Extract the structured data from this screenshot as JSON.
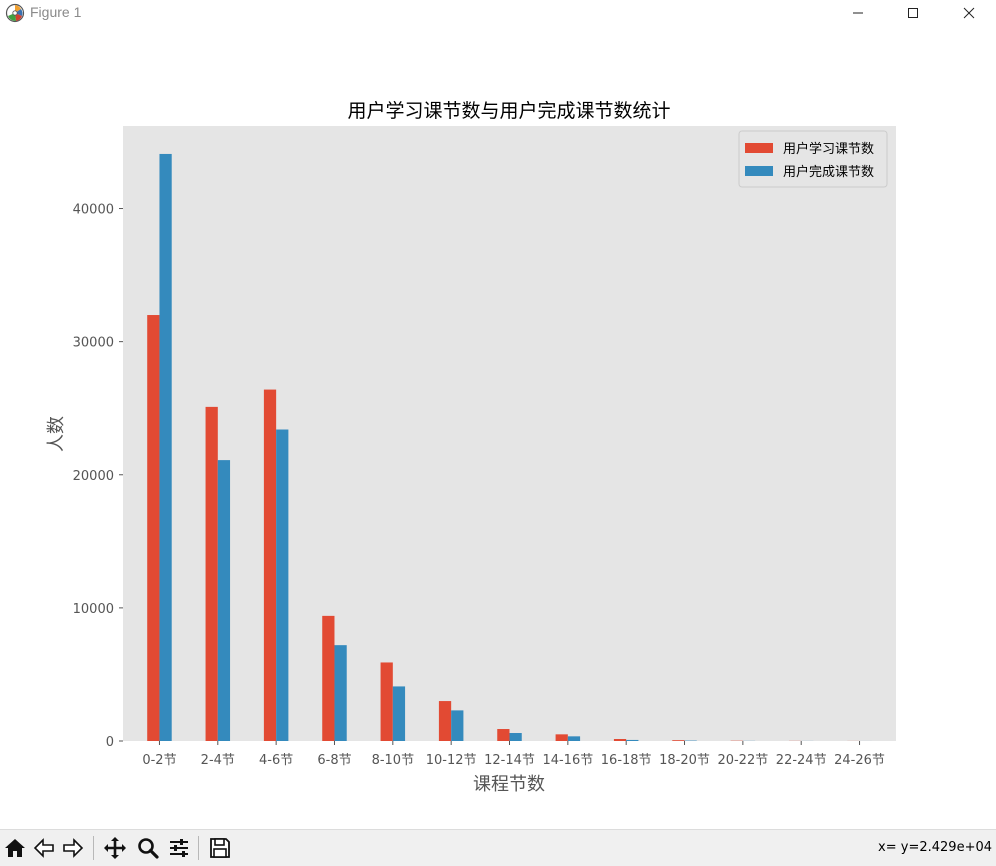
{
  "window": {
    "title": "Figure 1",
    "controls": [
      "minimize",
      "maximize",
      "close"
    ]
  },
  "chart_data": {
    "type": "bar",
    "title": "用户学习课节数与用户完成课节数统计",
    "xlabel": "课程节数",
    "ylabel": "人数",
    "categories": [
      "0-2节",
      "2-4节",
      "4-6节",
      "6-8节",
      "8-10节",
      "10-12节",
      "12-14节",
      "14-16节",
      "16-18节",
      "18-20节",
      "20-22节",
      "22-24节",
      "24-26节"
    ],
    "series": [
      {
        "name": "用户学习课节数",
        "color": "#E24A33",
        "values": [
          32000,
          25100,
          26400,
          9400,
          5900,
          3000,
          900,
          500,
          150,
          60,
          20,
          10,
          5
        ]
      },
      {
        "name": "用户完成课节数",
        "color": "#348ABD",
        "values": [
          44100,
          21100,
          23400,
          7200,
          4100,
          2300,
          600,
          350,
          80,
          30,
          10,
          5,
          2
        ]
      }
    ],
    "ylim": [
      0,
      46200
    ],
    "yticks": [
      0,
      10000,
      20000,
      30000,
      40000
    ],
    "ytick_labels": [
      "0",
      "10000",
      "20000",
      "30000",
      "40000"
    ],
    "grid": false,
    "legend_position": "top-right",
    "background": "#E5E5E5"
  },
  "toolbar": {
    "buttons": [
      "home-icon",
      "back-icon",
      "forward-icon",
      "pan-icon",
      "zoom-icon",
      "configure-icon",
      "save-icon"
    ],
    "status_text": "x= y=2.429e+04"
  }
}
